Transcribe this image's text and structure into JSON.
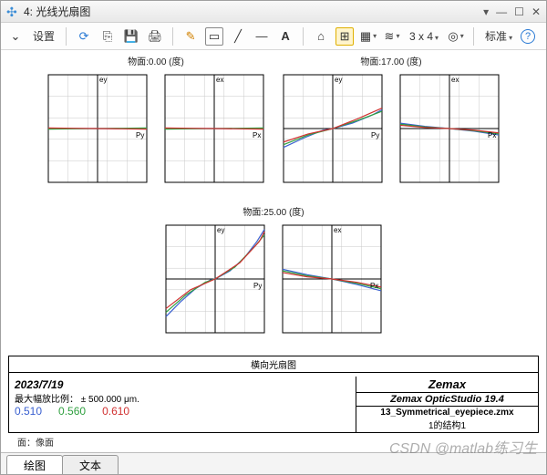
{
  "window": {
    "title": "4: 光线光扇图",
    "icon": "✣"
  },
  "winbuttons": {
    "dock": "▾",
    "min": "—",
    "max": "☐",
    "close": "✕"
  },
  "toolbar": {
    "settings": "设置",
    "settings_arrow": "⌄",
    "refresh": "⟳",
    "copy": "⎘",
    "save": "💾",
    "print": "🖨",
    "pencil": "✎",
    "rect": "▭",
    "line": "╱",
    "arrow": "—",
    "text": "A",
    "dome": "⌂",
    "grid": "⊞",
    "color": "▦",
    "layers": "≋",
    "size": "3 x 4",
    "target": "◎",
    "std": "标准",
    "help": "?"
  },
  "rows": [
    {
      "pairs": [
        {
          "label": "物面:0.00 (度)",
          "left": {
            "xaxis": "Py",
            "yaxis": "ey",
            "series": [
              {
                "color": "#3a60d0",
                "pts": [
                  [
                    -1,
                    0.0
                  ],
                  [
                    -0.5,
                    0.0
                  ],
                  [
                    0,
                    0
                  ],
                  [
                    0.5,
                    0.0
                  ],
                  [
                    1,
                    0.0
                  ]
                ]
              },
              {
                "color": "#30a040",
                "pts": [
                  [
                    -1,
                    -0.01
                  ],
                  [
                    -0.5,
                    -0.005
                  ],
                  [
                    0,
                    0
                  ],
                  [
                    0.5,
                    0.005
                  ],
                  [
                    1,
                    0.01
                  ]
                ]
              },
              {
                "color": "#d03030",
                "pts": [
                  [
                    -1,
                    0.01
                  ],
                  [
                    -0.5,
                    0.005
                  ],
                  [
                    0,
                    0
                  ],
                  [
                    0.5,
                    -0.005
                  ],
                  [
                    1,
                    -0.01
                  ]
                ]
              }
            ]
          },
          "right": {
            "xaxis": "Px",
            "yaxis": "ex",
            "series": [
              {
                "color": "#3a60d0",
                "pts": [
                  [
                    -1,
                    0.0
                  ],
                  [
                    -0.5,
                    0.0
                  ],
                  [
                    0,
                    0
                  ],
                  [
                    0.5,
                    0.0
                  ],
                  [
                    1,
                    0.0
                  ]
                ]
              },
              {
                "color": "#30a040",
                "pts": [
                  [
                    -1,
                    -0.01
                  ],
                  [
                    -0.5,
                    -0.005
                  ],
                  [
                    0,
                    0
                  ],
                  [
                    0.5,
                    0.005
                  ],
                  [
                    1,
                    0.01
                  ]
                ]
              },
              {
                "color": "#d03030",
                "pts": [
                  [
                    -1,
                    0.01
                  ],
                  [
                    -0.5,
                    0.005
                  ],
                  [
                    0,
                    0
                  ],
                  [
                    0.5,
                    -0.005
                  ],
                  [
                    1,
                    -0.01
                  ]
                ]
              }
            ]
          }
        },
        {
          "label": "物面:17.00 (度)",
          "left": {
            "xaxis": "Py",
            "yaxis": "ey",
            "series": [
              {
                "color": "#3a60d0",
                "pts": [
                  [
                    -1,
                    -0.35
                  ],
                  [
                    -0.6,
                    -0.18
                  ],
                  [
                    -0.2,
                    -0.03
                  ],
                  [
                    0,
                    0
                  ],
                  [
                    0.4,
                    0.1
                  ],
                  [
                    0.8,
                    0.25
                  ],
                  [
                    1,
                    0.35
                  ]
                ]
              },
              {
                "color": "#30a040",
                "pts": [
                  [
                    -1,
                    -0.3
                  ],
                  [
                    -0.5,
                    -0.12
                  ],
                  [
                    0,
                    0
                  ],
                  [
                    0.5,
                    0.15
                  ],
                  [
                    1,
                    0.32
                  ]
                ]
              },
              {
                "color": "#d03030",
                "pts": [
                  [
                    -1,
                    -0.25
                  ],
                  [
                    -0.5,
                    -0.1
                  ],
                  [
                    0,
                    0
                  ],
                  [
                    0.5,
                    0.18
                  ],
                  [
                    1,
                    0.38
                  ]
                ]
              }
            ]
          },
          "right": {
            "xaxis": "Px",
            "yaxis": "ex",
            "series": [
              {
                "color": "#3a60d0",
                "pts": [
                  [
                    -1,
                    0.1
                  ],
                  [
                    -0.5,
                    0.04
                  ],
                  [
                    0,
                    0
                  ],
                  [
                    0.5,
                    -0.05
                  ],
                  [
                    1,
                    -0.12
                  ]
                ]
              },
              {
                "color": "#30a040",
                "pts": [
                  [
                    -1,
                    0.08
                  ],
                  [
                    -0.5,
                    0.03
                  ],
                  [
                    0,
                    0
                  ],
                  [
                    0.5,
                    -0.04
                  ],
                  [
                    1,
                    -0.1
                  ]
                ]
              },
              {
                "color": "#d03030",
                "pts": [
                  [
                    -1,
                    0.06
                  ],
                  [
                    -0.5,
                    0.02
                  ],
                  [
                    0,
                    0
                  ],
                  [
                    0.5,
                    -0.03
                  ],
                  [
                    1,
                    -0.08
                  ]
                ]
              }
            ]
          }
        }
      ]
    },
    {
      "pairs": [
        {
          "label": "物面:25.00 (度)",
          "left": {
            "xaxis": "Py",
            "yaxis": "ey",
            "series": [
              {
                "color": "#3a60d0",
                "pts": [
                  [
                    -1,
                    -0.7
                  ],
                  [
                    -0.7,
                    -0.42
                  ],
                  [
                    -0.4,
                    -0.18
                  ],
                  [
                    -0.1,
                    -0.02
                  ],
                  [
                    0,
                    0
                  ],
                  [
                    0.3,
                    0.15
                  ],
                  [
                    0.6,
                    0.4
                  ],
                  [
                    0.85,
                    0.7
                  ],
                  [
                    1,
                    0.92
                  ]
                ]
              },
              {
                "color": "#30a040",
                "pts": [
                  [
                    -1,
                    -0.62
                  ],
                  [
                    -0.6,
                    -0.3
                  ],
                  [
                    -0.2,
                    -0.06
                  ],
                  [
                    0,
                    0
                  ],
                  [
                    0.4,
                    0.22
                  ],
                  [
                    0.8,
                    0.6
                  ],
                  [
                    1,
                    0.82
                  ]
                ]
              },
              {
                "color": "#d03030",
                "pts": [
                  [
                    -1,
                    -0.55
                  ],
                  [
                    -0.5,
                    -0.2
                  ],
                  [
                    0,
                    0
                  ],
                  [
                    0.5,
                    0.3
                  ],
                  [
                    0.9,
                    0.7
                  ],
                  [
                    1,
                    0.88
                  ]
                ]
              }
            ]
          },
          "right": {
            "xaxis": "Px",
            "yaxis": "ex",
            "series": [
              {
                "color": "#3a60d0",
                "pts": [
                  [
                    -1,
                    0.18
                  ],
                  [
                    -0.5,
                    0.08
                  ],
                  [
                    0,
                    0
                  ],
                  [
                    0.5,
                    -0.1
                  ],
                  [
                    1,
                    -0.22
                  ]
                ]
              },
              {
                "color": "#30a040",
                "pts": [
                  [
                    -1,
                    0.15
                  ],
                  [
                    -0.5,
                    0.06
                  ],
                  [
                    0,
                    0
                  ],
                  [
                    0.5,
                    -0.08
                  ],
                  [
                    1,
                    -0.18
                  ]
                ]
              },
              {
                "color": "#d03030",
                "pts": [
                  [
                    -1,
                    0.12
                  ],
                  [
                    -0.5,
                    0.04
                  ],
                  [
                    0,
                    0
                  ],
                  [
                    0.5,
                    -0.06
                  ],
                  [
                    1,
                    -0.15
                  ]
                ]
              }
            ]
          }
        }
      ]
    }
  ],
  "plot_style": {
    "xlim": [
      -1,
      1
    ],
    "ylim": [
      -1,
      1
    ],
    "grid_color": "#c8c8c8",
    "axis_color": "#000",
    "xticks": [
      -1,
      -0.6,
      -0.2,
      0.2,
      0.6,
      1
    ],
    "yticks": [
      -1,
      -0.6,
      -0.2,
      0.2,
      0.6,
      1
    ],
    "line_width": 1.2,
    "label_color": "#000",
    "label_fontsize": 8
  },
  "info": {
    "title": "横向光扇图",
    "date": "2023/7/19",
    "scale_label": "最大幅放比例：",
    "scale_value": "± 500.000 μm.",
    "wavelengths": [
      {
        "val": "0.510",
        "color": "#3a60d0"
      },
      {
        "val": "0.560",
        "color": "#30a040"
      },
      {
        "val": "0.610",
        "color": "#d03030"
      }
    ],
    "surface": "面：像面",
    "brand": "Zemax",
    "product": "Zemax OpticStudio 19.4",
    "file": "13_Symmetrical_eyepiece.zmx",
    "config": "1的结构1"
  },
  "tabs": {
    "t1": "绘图",
    "t2": "文本"
  },
  "watermark": "CSDN @matlab练习生"
}
